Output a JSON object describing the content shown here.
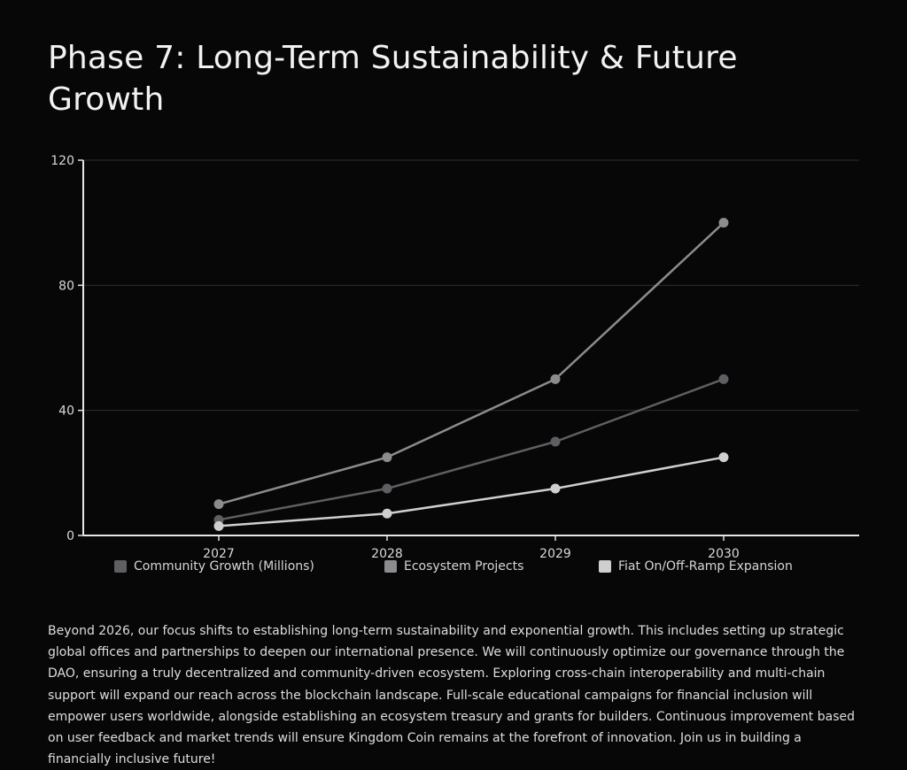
{
  "page": {
    "title": "Phase 7: Long-Term Sustainability & Future Growth",
    "description": "Beyond 2026, our focus shifts to establishing long-term sustainability and exponential growth. This includes setting up strategic global offices and partnerships to deepen our international presence. We will continuously optimize our governance through the DAO, ensuring a truly decentralized and community-driven ecosystem. Exploring cross-chain interoperability and multi-chain support will expand our reach across the blockchain landscape. Full-scale educational campaigns for financial inclusion will empower users worldwide, alongside establishing an ecosystem treasury and grants for builders. Continuous improvement based on user feedback and market trends will ensure Kingdom Coin remains at the forefront of innovation. Join us in building a financially inclusive future!"
  },
  "chart_data": {
    "type": "line",
    "title": "",
    "xlabel": "",
    "ylabel": "",
    "categories": [
      "2027",
      "2028",
      "2029",
      "2030"
    ],
    "ylim": [
      0,
      120
    ],
    "yticks": [
      0,
      40,
      80,
      120
    ],
    "grid": true,
    "legend_position": "bottom",
    "series": [
      {
        "name": "Community Growth (Millions)",
        "values": [
          5,
          15,
          30,
          50
        ],
        "color": "#5f5f63"
      },
      {
        "name": "Ecosystem Projects",
        "values": [
          10,
          25,
          50,
          100
        ],
        "color": "#8c8c8f"
      },
      {
        "name": "Fiat On/Off-Ramp Expansion",
        "values": [
          3,
          7,
          15,
          25
        ],
        "color": "#cfcfcf"
      }
    ]
  }
}
